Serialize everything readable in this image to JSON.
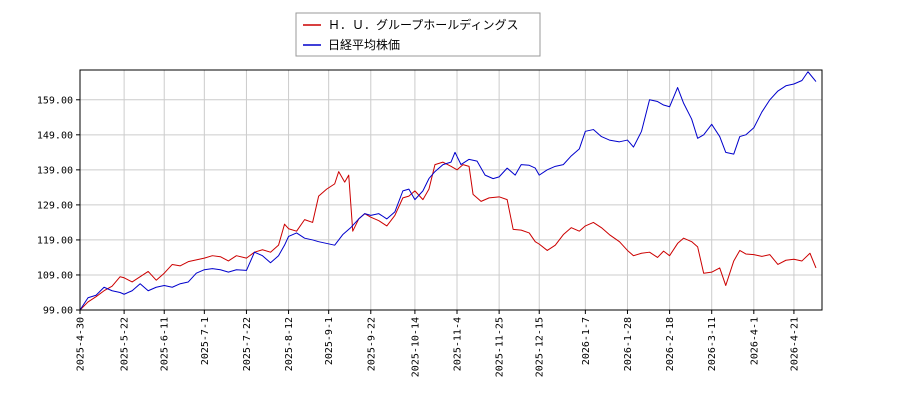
{
  "chart_data": {
    "type": "line",
    "title": "",
    "xlabel": "",
    "ylabel": "",
    "ylim": [
      99.0,
      167.5
    ],
    "xlim": [
      "2025-04-30",
      "2026-05-05"
    ],
    "grid": true,
    "legend_position": "top-center",
    "yticks": [
      99.0,
      109.0,
      119.0,
      129.0,
      139.0,
      149.0,
      159.0
    ],
    "yticklabels": [
      "99.00",
      "109.00",
      "119.00",
      "129.00",
      "139.00",
      "149.00",
      "159.00"
    ],
    "xticks": [
      "2025-4-30",
      "2025-5-22",
      "2025-6-11",
      "2025-7-1",
      "2025-7-22",
      "2025-8-12",
      "2025-9-1",
      "2025-9-22",
      "2025-10-14",
      "2025-11-4",
      "2025-11-25",
      "2025-12-15",
      "2026-1-7",
      "2026-1-28",
      "2026-2-18",
      "2026-3-11",
      "2026-4-1",
      "2026-4-21"
    ],
    "series": [
      {
        "name": "Ｈ．Ｕ．グループホールディングス",
        "color": "#cc0000",
        "points": [
          [
            "2025-04-30",
            99.0
          ],
          [
            "2025-05-04",
            101.3
          ],
          [
            "2025-05-08",
            102.8
          ],
          [
            "2025-05-12",
            104.5
          ],
          [
            "2025-05-16",
            105.8
          ],
          [
            "2025-05-20",
            108.5
          ],
          [
            "2025-05-22",
            108.2
          ],
          [
            "2025-05-26",
            107.0
          ],
          [
            "2025-05-30",
            108.5
          ],
          [
            "2025-06-03",
            110.0
          ],
          [
            "2025-06-07",
            107.5
          ],
          [
            "2025-06-11",
            109.5
          ],
          [
            "2025-06-15",
            112.0
          ],
          [
            "2025-06-19",
            111.6
          ],
          [
            "2025-06-23",
            112.8
          ],
          [
            "2025-06-27",
            113.3
          ],
          [
            "2025-07-01",
            113.8
          ],
          [
            "2025-07-05",
            114.5
          ],
          [
            "2025-07-09",
            114.2
          ],
          [
            "2025-07-13",
            113.0
          ],
          [
            "2025-07-17",
            114.5
          ],
          [
            "2025-07-22",
            113.8
          ],
          [
            "2025-07-26",
            115.5
          ],
          [
            "2025-07-30",
            116.2
          ],
          [
            "2025-08-03",
            115.5
          ],
          [
            "2025-08-07",
            117.5
          ],
          [
            "2025-08-10",
            123.5
          ],
          [
            "2025-08-12",
            122.2
          ],
          [
            "2025-08-16",
            121.5
          ],
          [
            "2025-08-20",
            124.8
          ],
          [
            "2025-08-24",
            124.0
          ],
          [
            "2025-08-27",
            131.5
          ],
          [
            "2025-08-31",
            133.5
          ],
          [
            "2025-09-04",
            135.0
          ],
          [
            "2025-09-06",
            138.5
          ],
          [
            "2025-09-09",
            135.5
          ],
          [
            "2025-09-11",
            137.5
          ],
          [
            "2025-09-13",
            121.5
          ],
          [
            "2025-09-16",
            125.0
          ],
          [
            "2025-09-19",
            126.5
          ],
          [
            "2025-09-22",
            125.5
          ],
          [
            "2025-09-26",
            124.5
          ],
          [
            "2025-09-30",
            123.0
          ],
          [
            "2025-10-04",
            126.0
          ],
          [
            "2025-10-08",
            131.0
          ],
          [
            "2025-10-11",
            131.5
          ],
          [
            "2025-10-14",
            133.0
          ],
          [
            "2025-10-18",
            130.5
          ],
          [
            "2025-10-21",
            133.5
          ],
          [
            "2025-10-24",
            140.5
          ],
          [
            "2025-10-28",
            141.2
          ],
          [
            "2025-11-01",
            140.0
          ],
          [
            "2025-11-04",
            139.0
          ],
          [
            "2025-11-07",
            140.5
          ],
          [
            "2025-11-10",
            140.0
          ],
          [
            "2025-11-12",
            132.0
          ],
          [
            "2025-11-16",
            130.0
          ],
          [
            "2025-11-20",
            131.0
          ],
          [
            "2025-11-25",
            131.3
          ],
          [
            "2025-11-29",
            130.5
          ],
          [
            "2025-12-02",
            122.0
          ],
          [
            "2025-12-06",
            121.8
          ],
          [
            "2025-12-10",
            121.0
          ],
          [
            "2025-12-13",
            118.5
          ],
          [
            "2025-12-15",
            117.8
          ],
          [
            "2025-12-19",
            116.0
          ],
          [
            "2025-12-23",
            117.5
          ],
          [
            "2025-12-27",
            120.5
          ],
          [
            "2025-12-31",
            122.5
          ],
          [
            "2026-01-04",
            121.5
          ],
          [
            "2026-01-07",
            123.0
          ],
          [
            "2026-01-11",
            124.0
          ],
          [
            "2026-01-15",
            122.5
          ],
          [
            "2026-01-19",
            120.5
          ],
          [
            "2026-01-24",
            118.5
          ],
          [
            "2026-01-28",
            116.0
          ],
          [
            "2026-01-31",
            114.5
          ],
          [
            "2026-02-04",
            115.2
          ],
          [
            "2026-02-08",
            115.5
          ],
          [
            "2026-02-12",
            114.0
          ],
          [
            "2026-02-15",
            115.8
          ],
          [
            "2026-02-18",
            114.5
          ],
          [
            "2026-02-22",
            118.0
          ],
          [
            "2026-02-25",
            119.5
          ],
          [
            "2026-03-01",
            118.5
          ],
          [
            "2026-03-04",
            117.0
          ],
          [
            "2026-03-07",
            109.5
          ],
          [
            "2026-03-11",
            109.8
          ],
          [
            "2026-03-15",
            111.0
          ],
          [
            "2026-03-18",
            106.0
          ],
          [
            "2026-03-22",
            113.0
          ],
          [
            "2026-03-25",
            116.0
          ],
          [
            "2026-03-28",
            115.0
          ],
          [
            "2026-04-01",
            114.8
          ],
          [
            "2026-04-05",
            114.3
          ],
          [
            "2026-04-09",
            114.8
          ],
          [
            "2026-04-13",
            112.0
          ],
          [
            "2026-04-17",
            113.2
          ],
          [
            "2026-04-21",
            113.5
          ],
          [
            "2026-04-25",
            113.0
          ],
          [
            "2026-04-29",
            115.2
          ],
          [
            "2026-05-02",
            111.0
          ]
        ]
      },
      {
        "name": "日経平均株価",
        "color": "#0000cc",
        "points": [
          [
            "2025-04-30",
            99.0
          ],
          [
            "2025-05-04",
            102.5
          ],
          [
            "2025-05-08",
            103.2
          ],
          [
            "2025-05-12",
            105.5
          ],
          [
            "2025-05-16",
            104.5
          ],
          [
            "2025-05-20",
            104.0
          ],
          [
            "2025-05-22",
            103.5
          ],
          [
            "2025-05-26",
            104.5
          ],
          [
            "2025-05-30",
            106.5
          ],
          [
            "2025-06-03",
            104.5
          ],
          [
            "2025-06-07",
            105.5
          ],
          [
            "2025-06-11",
            106.0
          ],
          [
            "2025-06-15",
            105.5
          ],
          [
            "2025-06-19",
            106.5
          ],
          [
            "2025-06-23",
            107.0
          ],
          [
            "2025-06-27",
            109.5
          ],
          [
            "2025-07-01",
            110.5
          ],
          [
            "2025-07-05",
            110.8
          ],
          [
            "2025-07-09",
            110.5
          ],
          [
            "2025-07-13",
            109.8
          ],
          [
            "2025-07-17",
            110.5
          ],
          [
            "2025-07-22",
            110.3
          ],
          [
            "2025-07-26",
            115.5
          ],
          [
            "2025-07-30",
            114.5
          ],
          [
            "2025-08-03",
            112.5
          ],
          [
            "2025-08-07",
            114.5
          ],
          [
            "2025-08-10",
            117.5
          ],
          [
            "2025-08-12",
            120.0
          ],
          [
            "2025-08-16",
            121.0
          ],
          [
            "2025-08-20",
            119.5
          ],
          [
            "2025-08-24",
            119.0
          ],
          [
            "2025-08-27",
            118.5
          ],
          [
            "2025-08-31",
            118.0
          ],
          [
            "2025-09-04",
            117.5
          ],
          [
            "2025-09-08",
            120.5
          ],
          [
            "2025-09-12",
            122.5
          ],
          [
            "2025-09-16",
            125.0
          ],
          [
            "2025-09-19",
            126.5
          ],
          [
            "2025-09-22",
            126.0
          ],
          [
            "2025-09-26",
            126.5
          ],
          [
            "2025-09-30",
            125.0
          ],
          [
            "2025-10-04",
            127.0
          ],
          [
            "2025-10-08",
            133.0
          ],
          [
            "2025-10-11",
            133.5
          ],
          [
            "2025-10-14",
            130.5
          ],
          [
            "2025-10-18",
            133.0
          ],
          [
            "2025-10-21",
            136.5
          ],
          [
            "2025-10-24",
            138.5
          ],
          [
            "2025-10-28",
            140.5
          ],
          [
            "2025-11-01",
            141.2
          ],
          [
            "2025-11-03",
            144.0
          ],
          [
            "2025-11-06",
            140.5
          ],
          [
            "2025-11-10",
            142.0
          ],
          [
            "2025-11-14",
            141.5
          ],
          [
            "2025-11-18",
            137.5
          ],
          [
            "2025-11-22",
            136.5
          ],
          [
            "2025-11-25",
            137.0
          ],
          [
            "2025-11-29",
            139.5
          ],
          [
            "2025-12-03",
            137.5
          ],
          [
            "2025-12-06",
            140.5
          ],
          [
            "2025-12-10",
            140.3
          ],
          [
            "2025-12-13",
            139.5
          ],
          [
            "2025-12-15",
            137.5
          ],
          [
            "2025-12-19",
            139.0
          ],
          [
            "2025-12-23",
            140.0
          ],
          [
            "2025-12-27",
            140.5
          ],
          [
            "2025-12-31",
            143.0
          ],
          [
            "2026-01-04",
            145.0
          ],
          [
            "2026-01-07",
            150.0
          ],
          [
            "2026-01-11",
            150.5
          ],
          [
            "2026-01-15",
            148.5
          ],
          [
            "2026-01-19",
            147.5
          ],
          [
            "2026-01-24",
            147.0
          ],
          [
            "2026-01-28",
            147.5
          ],
          [
            "2026-01-31",
            145.5
          ],
          [
            "2026-02-04",
            150.0
          ],
          [
            "2026-02-08",
            159.0
          ],
          [
            "2026-02-12",
            158.5
          ],
          [
            "2026-02-15",
            157.5
          ],
          [
            "2026-02-18",
            157.0
          ],
          [
            "2026-02-22",
            162.5
          ],
          [
            "2026-02-25",
            158.0
          ],
          [
            "2026-03-01",
            153.5
          ],
          [
            "2026-03-04",
            148.0
          ],
          [
            "2026-03-07",
            149.0
          ],
          [
            "2026-03-11",
            152.0
          ],
          [
            "2026-03-15",
            148.5
          ],
          [
            "2026-03-18",
            144.0
          ],
          [
            "2026-03-22",
            143.5
          ],
          [
            "2026-03-25",
            148.5
          ],
          [
            "2026-03-28",
            149.0
          ],
          [
            "2026-04-01",
            151.0
          ],
          [
            "2026-04-05",
            155.5
          ],
          [
            "2026-04-09",
            159.0
          ],
          [
            "2026-04-13",
            161.5
          ],
          [
            "2026-04-17",
            163.0
          ],
          [
            "2026-04-21",
            163.5
          ],
          [
            "2026-04-25",
            164.5
          ],
          [
            "2026-04-28",
            167.0
          ],
          [
            "2026-05-02",
            164.2
          ]
        ]
      }
    ]
  }
}
